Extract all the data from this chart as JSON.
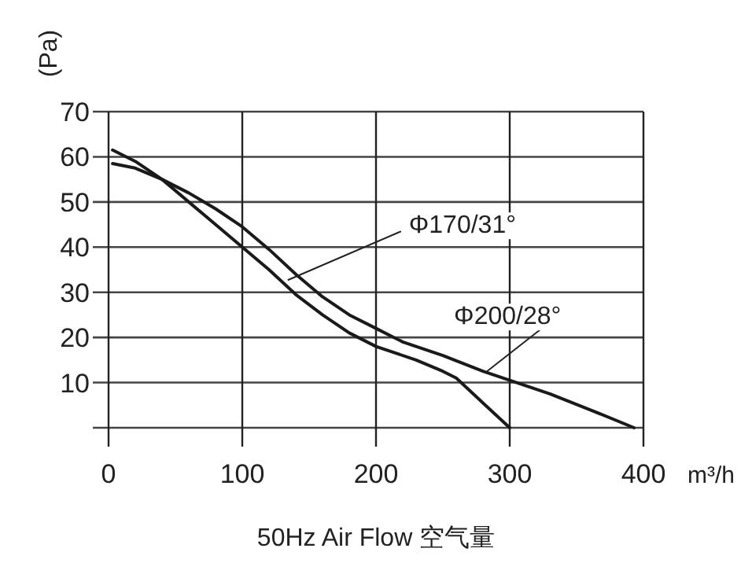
{
  "chart_data": {
    "type": "line",
    "xlabel": "50Hz  Air Flow 空气量",
    "ylabel": "(Pa)",
    "xlim": [
      0,
      400
    ],
    "ylim": [
      0,
      70
    ],
    "xticks": [
      0,
      100,
      200,
      300,
      400
    ],
    "yticks": [
      {
        "value": 0,
        "label": null
      },
      10,
      20,
      30,
      40,
      50,
      60,
      70
    ],
    "grid": true,
    "marker": "none",
    "line_style": "solid",
    "series": [
      {
        "color": "#1a1a1a",
        "x": [
          3,
          20,
          40,
          60,
          80,
          100,
          120,
          140,
          160,
          180,
          200,
          230,
          250,
          260,
          280,
          300
        ],
        "values": [
          61.5,
          59,
          55,
          50,
          45,
          40,
          35,
          29.5,
          25,
          21,
          18,
          15,
          12.5,
          11,
          5.5,
          0
        ]
      },
      {
        "color": "#1a1a1a",
        "x": [
          3,
          20,
          40,
          60,
          80,
          100,
          120,
          140,
          160,
          180,
          200,
          220,
          250,
          280,
          300,
          330,
          360,
          393
        ],
        "values": [
          58.5,
          57.5,
          55,
          52,
          48.5,
          44.5,
          39.5,
          34,
          29,
          25,
          22,
          19,
          16,
          12.5,
          10.5,
          7.5,
          4,
          0
        ]
      }
    ],
    "annotations": [
      {
        "text": "Φ170/31°",
        "x": 134,
        "y": 32.7
      },
      {
        "text": "Φ200/28°",
        "x": 283,
        "y": 12.5
      },
      "m³/h"
    ]
  }
}
